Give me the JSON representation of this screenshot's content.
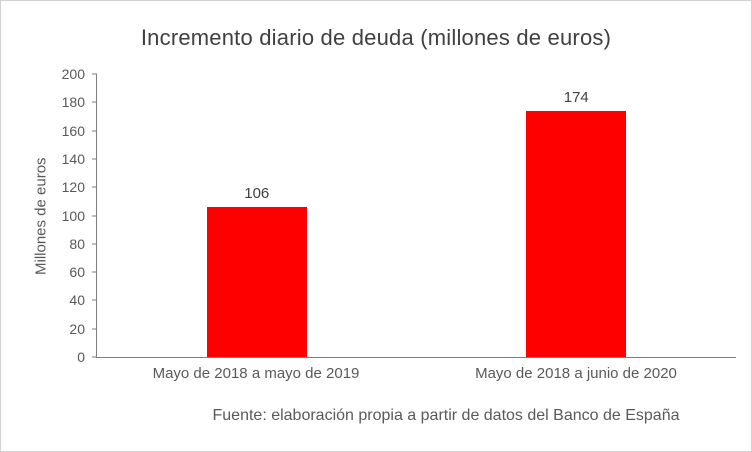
{
  "chart_data": {
    "type": "bar",
    "title": "Incremento diario de deuda (millones de euros)",
    "ylabel": "Millones de euros",
    "xlabel": "",
    "categories": [
      "Mayo de 2018 a mayo de 2019",
      "Mayo de 2018 a junio de 2020"
    ],
    "values": [
      106,
      174
    ],
    "value_labels": [
      "106",
      "174"
    ],
    "ylim": [
      0,
      200
    ],
    "yticks": [
      0,
      20,
      40,
      60,
      80,
      100,
      120,
      140,
      160,
      180,
      200
    ],
    "grid": false,
    "legend": false,
    "bar_color": "#ff0000",
    "axis_color": "#7f7f7f",
    "text_color": "#595959",
    "source": "Fuente: elaboración propia a partir de datos del Banco de España"
  }
}
